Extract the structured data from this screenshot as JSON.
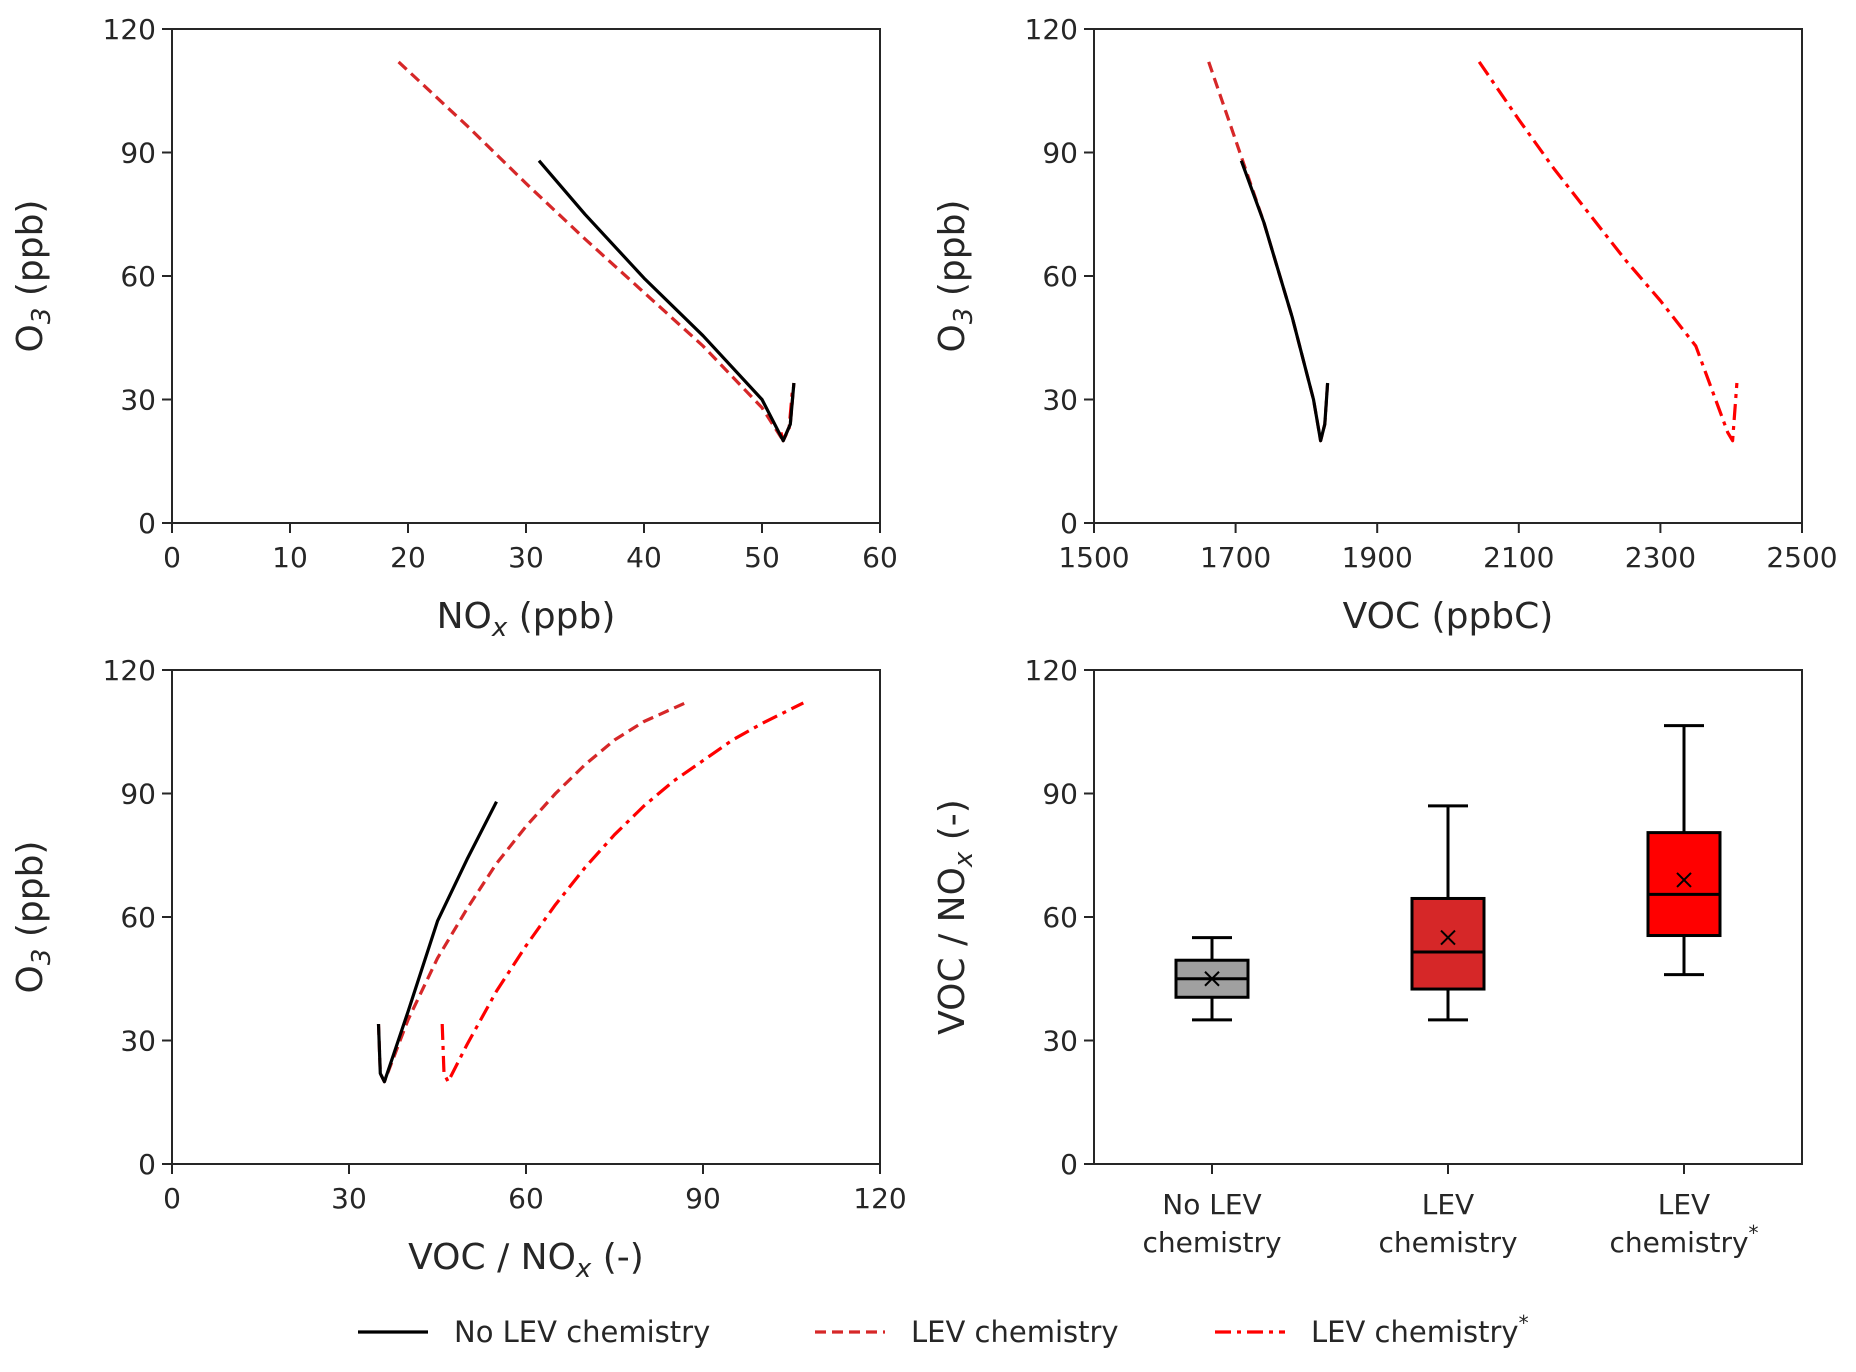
{
  "colors": {
    "no_lev": "#000000",
    "lev": "#d62728",
    "lev_star": "#ff0000",
    "box_no_lev": "#a0a0a0",
    "box_lev": "#d62728",
    "box_lev_star": "#ff0000"
  },
  "legend": {
    "placement": "bottom-center",
    "entries": [
      {
        "label": "No LEV chemistry",
        "style": "solid",
        "color": "#000000",
        "sup": ""
      },
      {
        "label": "LEV chemistry",
        "style": "dashed",
        "color": "#d62728",
        "sup": ""
      },
      {
        "label": "LEV chemistry",
        "style": "dashdot",
        "color": "#ff0000",
        "sup": "*"
      }
    ]
  },
  "chart_data": [
    {
      "type": "line",
      "xlabel": {
        "main": "NO",
        "sub": "x",
        "rest": " (ppb)"
      },
      "ylabel": {
        "main": "O",
        "sub": "3",
        "rest": " (ppb)"
      },
      "xlim": [
        0,
        60
      ],
      "ylim": [
        0,
        120
      ],
      "xticks": [
        0,
        10,
        20,
        30,
        40,
        50,
        60
      ],
      "yticks": [
        0,
        30,
        60,
        90,
        120
      ],
      "series": [
        {
          "style": "dashed",
          "color": "#d62728",
          "x": [
            19.2,
            25,
            30,
            35,
            40,
            45,
            50,
            51.8,
            52.4,
            52.7
          ],
          "y": [
            112,
            96.5,
            82.5,
            69,
            56,
            43,
            28,
            20,
            24,
            34
          ]
        },
        {
          "style": "dashdot",
          "color": "#ff0000",
          "x": [
            51.6,
            51.8,
            52.3,
            52.6
          ],
          "y": [
            22,
            20,
            23,
            33
          ]
        },
        {
          "style": "solid",
          "color": "#000000",
          "x": [
            31.1,
            35,
            40,
            45,
            50,
            51.8,
            52.4,
            52.7
          ],
          "y": [
            88,
            75,
            59.5,
            45.5,
            30,
            20,
            24,
            34
          ]
        }
      ]
    },
    {
      "type": "line",
      "xlabel": {
        "main": "VOC (ppbC)",
        "sub": "",
        "rest": ""
      },
      "ylabel": {
        "main": "O",
        "sub": "3",
        "rest": " (ppb)"
      },
      "xlim": [
        1500,
        2500
      ],
      "ylim": [
        0,
        120
      ],
      "xticks": [
        1500,
        1700,
        1900,
        2100,
        2300,
        2500
      ],
      "yticks": [
        0,
        30,
        60,
        90,
        120
      ],
      "series": [
        {
          "style": "dashed",
          "color": "#d62728",
          "x": [
            1662,
            1700,
            1740,
            1780,
            1810,
            1820,
            1826,
            1830
          ],
          "y": [
            112,
            93,
            73,
            50,
            30,
            20,
            24,
            34
          ]
        },
        {
          "style": "dashdot",
          "color": "#ff0000",
          "x": [
            2044,
            2100,
            2150,
            2200,
            2250,
            2300,
            2350,
            2395,
            2402,
            2408
          ],
          "y": [
            112,
            98,
            86,
            75,
            64,
            54,
            43,
            22,
            20,
            34
          ]
        },
        {
          "style": "solid",
          "color": "#000000",
          "x": [
            1708,
            1740,
            1780,
            1810,
            1820,
            1826,
            1830
          ],
          "y": [
            88,
            73,
            50,
            30,
            20,
            24,
            34
          ]
        }
      ]
    },
    {
      "type": "line",
      "xlabel": {
        "main": "VOC / NO",
        "sub": "x",
        "rest": " (-)"
      },
      "ylabel": {
        "main": "O",
        "sub": "3",
        "rest": " (ppb)"
      },
      "xlim": [
        0,
        120
      ],
      "ylim": [
        0,
        120
      ],
      "xticks": [
        0,
        30,
        60,
        90,
        120
      ],
      "yticks": [
        0,
        30,
        60,
        90,
        120
      ],
      "series": [
        {
          "style": "dashed",
          "color": "#d62728",
          "x": [
            35,
            35.3,
            36,
            40,
            45,
            50,
            55,
            60,
            65,
            70,
            75,
            80,
            87
          ],
          "y": [
            34,
            22,
            20,
            35,
            50,
            62,
            73,
            82,
            90,
            97,
            103,
            107.5,
            112
          ]
        },
        {
          "style": "dashdot",
          "color": "#ff0000",
          "x": [
            45.8,
            46.1,
            46.8,
            50,
            55,
            60,
            65,
            70,
            75,
            80,
            85,
            90,
            95,
            100,
            107
          ],
          "y": [
            34,
            22,
            20,
            29,
            42,
            53,
            63,
            72,
            80,
            87,
            93,
            98,
            103,
            107,
            112
          ]
        },
        {
          "style": "solid",
          "color": "#000000",
          "x": [
            35,
            35.3,
            36,
            40,
            45,
            50,
            55
          ],
          "y": [
            34,
            22,
            20,
            37,
            59,
            74,
            88
          ]
        }
      ]
    },
    {
      "type": "box",
      "xlabel": {
        "main": "",
        "sub": "",
        "rest": ""
      },
      "ylabel": {
        "main": "VOC / NO",
        "sub": "x",
        "rest": " (-)"
      },
      "ylim": [
        0,
        120
      ],
      "yticks": [
        0,
        30,
        60,
        90,
        120
      ],
      "categories": [
        {
          "line1": "No LEV",
          "line2": "chemistry",
          "sup": ""
        },
        {
          "line1": "LEV",
          "line2": "chemistry",
          "sup": ""
        },
        {
          "line1": "LEV",
          "line2": "chemistry",
          "sup": "*"
        }
      ],
      "boxes": [
        {
          "color": "#a0a0a0",
          "whisker_low": 35,
          "q1": 40.5,
          "median": 45,
          "q3": 49.5,
          "whisker_high": 55,
          "mean": 45
        },
        {
          "color": "#d62728",
          "whisker_low": 35,
          "q1": 42.5,
          "median": 51.5,
          "q3": 64.5,
          "whisker_high": 87,
          "mean": 55
        },
        {
          "color": "#ff0000",
          "whisker_low": 46,
          "q1": 55.5,
          "median": 65.5,
          "q3": 80.5,
          "whisker_high": 106.5,
          "mean": 69
        }
      ]
    }
  ]
}
